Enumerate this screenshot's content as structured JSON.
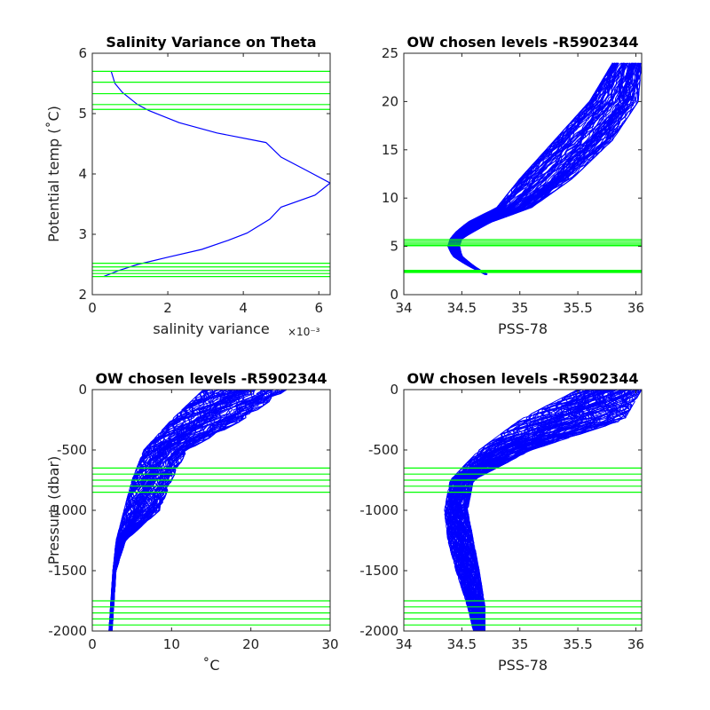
{
  "chart_data": [
    {
      "id": "p1",
      "type": "line",
      "title": "Salinity Variance on Theta",
      "xlabel": "salinity variance",
      "xlabel_exponent": "×10⁻³",
      "ylabel": "Potential temp (˚C)",
      "xlim": [
        0,
        6.3
      ],
      "ylim": [
        2,
        6
      ],
      "xticks": [
        0,
        2,
        4,
        6
      ],
      "yticks": [
        2,
        3,
        4,
        5,
        6
      ],
      "series": [
        {
          "color": "#0000ff",
          "x": [
            0.5,
            0.6,
            0.8,
            1.2,
            1.5,
            2.3,
            3.3,
            4.6,
            5.0,
            5.7,
            6.3,
            5.9,
            5.0,
            4.7,
            4.1,
            3.6,
            2.9,
            2.0,
            1.2,
            0.7,
            0.3
          ],
          "y": [
            5.7,
            5.5,
            5.35,
            5.15,
            5.05,
            4.85,
            4.68,
            4.52,
            4.28,
            4.05,
            3.85,
            3.65,
            3.45,
            3.25,
            3.02,
            2.9,
            2.75,
            2.62,
            2.5,
            2.4,
            2.3
          ]
        }
      ],
      "hlines": {
        "color": "#00ff00",
        "values": [
          5.7,
          5.52,
          5.33,
          5.15,
          5.07,
          2.52,
          2.46,
          2.4,
          2.35,
          2.3
        ]
      }
    },
    {
      "id": "p2",
      "type": "line",
      "title": "OW chosen levels -R5902344",
      "xlabel": "PSS-78",
      "ylabel": "",
      "xlim": [
        34,
        36.05
      ],
      "ylim": [
        0,
        25
      ],
      "xticks": [
        34,
        34.5,
        35,
        35.5,
        36
      ],
      "yticks": [
        0,
        5,
        10,
        15,
        20,
        25
      ],
      "envelope": {
        "color": "#0000ff",
        "left_x": [
          34.7,
          34.55,
          34.42,
          34.38,
          34.4,
          34.45,
          34.55,
          34.8,
          35.0,
          35.3,
          35.6,
          35.8
        ],
        "right_x": [
          34.72,
          34.6,
          34.5,
          34.48,
          34.5,
          34.6,
          34.75,
          35.1,
          35.45,
          35.8,
          36.02,
          36.05
        ],
        "y": [
          2.1,
          3.0,
          4.0,
          5.0,
          5.8,
          6.5,
          7.5,
          9.0,
          12.0,
          16.0,
          20.0,
          24.0
        ]
      },
      "hlines": {
        "color": "#00ff00",
        "values": [
          5.7,
          5.52,
          5.33,
          5.15,
          5.07,
          2.52,
          2.46,
          2.4,
          2.35,
          2.3
        ]
      }
    },
    {
      "id": "p3",
      "type": "line",
      "title": "OW chosen levels -R5902344",
      "xlabel": "˚C",
      "ylabel": "Pressure (dbar)",
      "xlim": [
        0,
        30
      ],
      "ylim": [
        -2000,
        0
      ],
      "xticks": [
        0,
        10,
        20,
        30
      ],
      "yticks": [
        -2000,
        -1500,
        -1000,
        -500,
        0
      ],
      "envelope": {
        "color": "#0000ff",
        "left_x": [
          14,
          10,
          6.5,
          5.0,
          4.0,
          3.0,
          2.6,
          2.3,
          2.1
        ],
        "right_x": [
          24.5,
          19,
          12,
          10,
          8.5,
          4.2,
          3.0,
          2.7,
          2.5
        ],
        "y": [
          0,
          -250,
          -500,
          -750,
          -1000,
          -1250,
          -1500,
          -1800,
          -2000
        ]
      },
      "hlines": {
        "color": "#00ff00",
        "values": [
          -650,
          -700,
          -750,
          -800,
          -850,
          -1750,
          -1800,
          -1850,
          -1900,
          -1950
        ]
      }
    },
    {
      "id": "p4",
      "type": "line",
      "title": "OW chosen levels -R5902344",
      "xlabel": "PSS-78",
      "ylabel": "",
      "xlim": [
        34,
        36.05
      ],
      "ylim": [
        -2000,
        0
      ],
      "xticks": [
        34,
        34.5,
        35,
        35.5,
        36
      ],
      "yticks": [
        -2000,
        -1500,
        -1000,
        -500,
        0
      ],
      "envelope": {
        "color": "#0000ff",
        "left_x": [
          35.5,
          35.0,
          34.65,
          34.4,
          34.35,
          34.38,
          34.45,
          34.55,
          34.6
        ],
        "right_x": [
          36.05,
          35.9,
          35.1,
          34.6,
          34.55,
          34.6,
          34.65,
          34.7,
          34.7
        ],
        "y": [
          0,
          -250,
          -500,
          -750,
          -1000,
          -1250,
          -1500,
          -1800,
          -2000
        ]
      },
      "hlines": {
        "color": "#00ff00",
        "values": [
          -650,
          -700,
          -750,
          -800,
          -850,
          -1750,
          -1800,
          -1850,
          -1900,
          -1950
        ]
      }
    }
  ]
}
